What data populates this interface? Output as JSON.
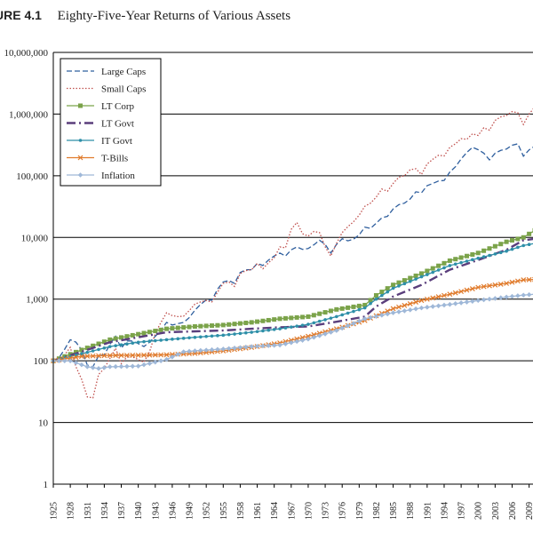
{
  "figure": {
    "label": "URE 4.1",
    "caption": "Eighty-Five-Year Returns of Various Assets"
  },
  "chart_data": {
    "type": "line",
    "title": "Eighty-Five-Year Returns of Various Assets",
    "xlabel": "",
    "ylabel": "",
    "y_scale": "log",
    "ylim": [
      1,
      10000000
    ],
    "xlim": [
      1925,
      2010
    ],
    "grid": "horizontal",
    "legend_position": "top-left",
    "y_tick_labels": [
      "1",
      "10",
      "100",
      "1,000",
      "10,000",
      "100,000",
      "1,000,000",
      "10,000,000"
    ],
    "y_tick_values": [
      1,
      10,
      100,
      1000,
      10000,
      100000,
      1000000,
      10000000
    ],
    "x_tick_labels": [
      "1925",
      "1928",
      "1931",
      "1934",
      "1937",
      "1940",
      "1943",
      "1946",
      "1949",
      "1952",
      "1955",
      "1958",
      "1961",
      "1964",
      "1967",
      "1970",
      "1973",
      "1976",
      "1979",
      "1982",
      "1985",
      "1988",
      "1991",
      "1994",
      "1997",
      "2000",
      "2003",
      "2006",
      "2009"
    ],
    "series": [
      {
        "name": "Large Caps",
        "color": "#2f5f9e",
        "dash": "6,3",
        "marker": "none",
        "points": [
          [
            1925,
            100
          ],
          [
            1926,
            112
          ],
          [
            1927,
            154
          ],
          [
            1928,
            220
          ],
          [
            1929,
            200
          ],
          [
            1930,
            150
          ],
          [
            1931,
            85
          ],
          [
            1932,
            80
          ],
          [
            1933,
            120
          ],
          [
            1934,
            125
          ],
          [
            1935,
            185
          ],
          [
            1936,
            250
          ],
          [
            1937,
            160
          ],
          [
            1938,
            210
          ],
          [
            1939,
            210
          ],
          [
            1940,
            190
          ],
          [
            1941,
            170
          ],
          [
            1942,
            200
          ],
          [
            1943,
            250
          ],
          [
            1944,
            310
          ],
          [
            1945,
            420
          ],
          [
            1946,
            380
          ],
          [
            1947,
            400
          ],
          [
            1948,
            420
          ],
          [
            1949,
            500
          ],
          [
            1950,
            660
          ],
          [
            1951,
            820
          ],
          [
            1952,
            970
          ],
          [
            1953,
            960
          ],
          [
            1954,
            1450
          ],
          [
            1955,
            1900
          ],
          [
            1956,
            2000
          ],
          [
            1957,
            1800
          ],
          [
            1958,
            2700
          ],
          [
            1959,
            3000
          ],
          [
            1960,
            3000
          ],
          [
            1961,
            3800
          ],
          [
            1962,
            3500
          ],
          [
            1963,
            4300
          ],
          [
            1964,
            5000
          ],
          [
            1965,
            5600
          ],
          [
            1966,
            5000
          ],
          [
            1967,
            6300
          ],
          [
            1968,
            7000
          ],
          [
            1969,
            6400
          ],
          [
            1970,
            6600
          ],
          [
            1971,
            7600
          ],
          [
            1972,
            9000
          ],
          [
            1973,
            7700
          ],
          [
            1974,
            5600
          ],
          [
            1975,
            7700
          ],
          [
            1976,
            9500
          ],
          [
            1977,
            8800
          ],
          [
            1978,
            9400
          ],
          [
            1979,
            11000
          ],
          [
            1980,
            14700
          ],
          [
            1981,
            14000
          ],
          [
            1982,
            17000
          ],
          [
            1983,
            20800
          ],
          [
            1984,
            22000
          ],
          [
            1985,
            29000
          ],
          [
            1986,
            34000
          ],
          [
            1987,
            36000
          ],
          [
            1988,
            42000
          ],
          [
            1989,
            55000
          ],
          [
            1990,
            53000
          ],
          [
            1991,
            69000
          ],
          [
            1992,
            75000
          ],
          [
            1993,
            82000
          ],
          [
            1994,
            84000
          ],
          [
            1995,
            115000
          ],
          [
            1996,
            140000
          ],
          [
            1997,
            187000
          ],
          [
            1998,
            240000
          ],
          [
            1999,
            290000
          ],
          [
            2000,
            265000
          ],
          [
            2001,
            233000
          ],
          [
            2002,
            181000
          ],
          [
            2003,
            233000
          ],
          [
            2004,
            258000
          ],
          [
            2005,
            271000
          ],
          [
            2006,
            313000
          ],
          [
            2007,
            330000
          ],
          [
            2008,
            208000
          ],
          [
            2009,
            263000
          ],
          [
            2010,
            302000
          ]
        ]
      },
      {
        "name": "Small Caps",
        "color": "#c0504d",
        "dash": "1.5,2",
        "marker": "none",
        "points": [
          [
            1925,
            100
          ],
          [
            1926,
            103
          ],
          [
            1927,
            125
          ],
          [
            1928,
            165
          ],
          [
            1929,
            80
          ],
          [
            1930,
            50
          ],
          [
            1931,
            26
          ],
          [
            1932,
            25
          ],
          [
            1933,
            60
          ],
          [
            1934,
            75
          ],
          [
            1935,
            110
          ],
          [
            1936,
            160
          ],
          [
            1937,
            90
          ],
          [
            1938,
            115
          ],
          [
            1939,
            115
          ],
          [
            1940,
            105
          ],
          [
            1941,
            95
          ],
          [
            1942,
            140
          ],
          [
            1943,
            280
          ],
          [
            1944,
            420
          ],
          [
            1945,
            600
          ],
          [
            1946,
            540
          ],
          [
            1947,
            520
          ],
          [
            1948,
            530
          ],
          [
            1949,
            650
          ],
          [
            1950,
            830
          ],
          [
            1951,
            900
          ],
          [
            1952,
            950
          ],
          [
            1953,
            900
          ],
          [
            1954,
            1300
          ],
          [
            1955,
            1800
          ],
          [
            1956,
            1900
          ],
          [
            1957,
            1600
          ],
          [
            1958,
            2600
          ],
          [
            1959,
            2900
          ],
          [
            1960,
            3000
          ],
          [
            1961,
            3800
          ],
          [
            1962,
            3100
          ],
          [
            1963,
            3900
          ],
          [
            1964,
            4700
          ],
          [
            1965,
            7000
          ],
          [
            1966,
            6800
          ],
          [
            1967,
            13500
          ],
          [
            1968,
            17500
          ],
          [
            1969,
            11500
          ],
          [
            1970,
            10500
          ],
          [
            1971,
            12500
          ],
          [
            1972,
            12000
          ],
          [
            1973,
            7000
          ],
          [
            1974,
            5000
          ],
          [
            1975,
            8000
          ],
          [
            1976,
            12000
          ],
          [
            1977,
            15000
          ],
          [
            1978,
            18000
          ],
          [
            1979,
            23000
          ],
          [
            1980,
            32000
          ],
          [
            1981,
            36000
          ],
          [
            1982,
            45000
          ],
          [
            1983,
            61000
          ],
          [
            1984,
            56000
          ],
          [
            1985,
            75000
          ],
          [
            1986,
            95000
          ],
          [
            1987,
            100000
          ],
          [
            1988,
            125000
          ],
          [
            1989,
            130000
          ],
          [
            1990,
            105000
          ],
          [
            1991,
            155000
          ],
          [
            1992,
            185000
          ],
          [
            1993,
            215000
          ],
          [
            1994,
            210000
          ],
          [
            1995,
            290000
          ],
          [
            1996,
            330000
          ],
          [
            1997,
            400000
          ],
          [
            1998,
            390000
          ],
          [
            1999,
            480000
          ],
          [
            2000,
            450000
          ],
          [
            2001,
            600000
          ],
          [
            2002,
            550000
          ],
          [
            2003,
            790000
          ],
          [
            2004,
            900000
          ],
          [
            2005,
            950000
          ],
          [
            2006,
            1100000
          ],
          [
            2007,
            1050000
          ],
          [
            2008,
            680000
          ],
          [
            2009,
            1000000
          ],
          [
            2010,
            1300000
          ]
        ]
      },
      {
        "name": "LT Corp",
        "color": "#7ba34a",
        "dash": "",
        "marker": "square",
        "points": [
          [
            1925,
            100
          ],
          [
            1930,
            150
          ],
          [
            1935,
            220
          ],
          [
            1940,
            270
          ],
          [
            1945,
            330
          ],
          [
            1950,
            360
          ],
          [
            1955,
            380
          ],
          [
            1960,
            420
          ],
          [
            1965,
            480
          ],
          [
            1970,
            520
          ],
          [
            1975,
            680
          ],
          [
            1980,
            800
          ],
          [
            1982,
            1150
          ],
          [
            1985,
            1700
          ],
          [
            1990,
            2600
          ],
          [
            1995,
            4200
          ],
          [
            2000,
            5600
          ],
          [
            2005,
            8500
          ],
          [
            2008,
            10000
          ],
          [
            2010,
            13000
          ]
        ]
      },
      {
        "name": "LT Govt",
        "color": "#5a3e7c",
        "dash": "10,4,2,4",
        "marker": "none",
        "points": [
          [
            1925,
            100
          ],
          [
            1930,
            140
          ],
          [
            1935,
            200
          ],
          [
            1940,
            240
          ],
          [
            1945,
            290
          ],
          [
            1950,
            300
          ],
          [
            1955,
            310
          ],
          [
            1960,
            330
          ],
          [
            1965,
            350
          ],
          [
            1970,
            360
          ],
          [
            1975,
            430
          ],
          [
            1980,
            520
          ],
          [
            1982,
            760
          ],
          [
            1985,
            1100
          ],
          [
            1990,
            1700
          ],
          [
            1995,
            3000
          ],
          [
            2000,
            4300
          ],
          [
            2005,
            6300
          ],
          [
            2008,
            9000
          ],
          [
            2010,
            9500
          ]
        ]
      },
      {
        "name": "IT Govt",
        "color": "#2e8fa8",
        "dash": "",
        "marker": "dot",
        "points": [
          [
            1925,
            100
          ],
          [
            1930,
            130
          ],
          [
            1935,
            170
          ],
          [
            1940,
            200
          ],
          [
            1945,
            220
          ],
          [
            1950,
            240
          ],
          [
            1955,
            260
          ],
          [
            1960,
            290
          ],
          [
            1965,
            330
          ],
          [
            1970,
            390
          ],
          [
            1975,
            520
          ],
          [
            1980,
            720
          ],
          [
            1982,
            1000
          ],
          [
            1985,
            1500
          ],
          [
            1990,
            2300
          ],
          [
            1995,
            3500
          ],
          [
            2000,
            4600
          ],
          [
            2005,
            6000
          ],
          [
            2008,
            7400
          ],
          [
            2010,
            8000
          ]
        ]
      },
      {
        "name": "T-Bills",
        "color": "#e07b2c",
        "dash": "",
        "marker": "x",
        "points": [
          [
            1925,
            100
          ],
          [
            1930,
            118
          ],
          [
            1935,
            122
          ],
          [
            1940,
            123
          ],
          [
            1945,
            125
          ],
          [
            1950,
            132
          ],
          [
            1955,
            145
          ],
          [
            1960,
            165
          ],
          [
            1965,
            195
          ],
          [
            1970,
            250
          ],
          [
            1975,
            330
          ],
          [
            1980,
            450
          ],
          [
            1985,
            700
          ],
          [
            1990,
            950
          ],
          [
            1995,
            1200
          ],
          [
            2000,
            1550
          ],
          [
            2005,
            1800
          ],
          [
            2008,
            2050
          ],
          [
            2010,
            2080
          ]
        ]
      },
      {
        "name": "Inflation",
        "color": "#9fb8d8",
        "dash": "",
        "marker": "diamond",
        "points": [
          [
            1925,
            100
          ],
          [
            1928,
            100
          ],
          [
            1931,
            80
          ],
          [
            1933,
            75
          ],
          [
            1935,
            80
          ],
          [
            1940,
            82
          ],
          [
            1945,
            105
          ],
          [
            1948,
            140
          ],
          [
            1950,
            145
          ],
          [
            1955,
            155
          ],
          [
            1960,
            170
          ],
          [
            1965,
            180
          ],
          [
            1970,
            225
          ],
          [
            1975,
            310
          ],
          [
            1980,
            480
          ],
          [
            1985,
            600
          ],
          [
            1990,
            720
          ],
          [
            1995,
            820
          ],
          [
            2000,
            950
          ],
          [
            2005,
            1080
          ],
          [
            2008,
            1160
          ],
          [
            2010,
            1200
          ]
        ]
      }
    ]
  }
}
